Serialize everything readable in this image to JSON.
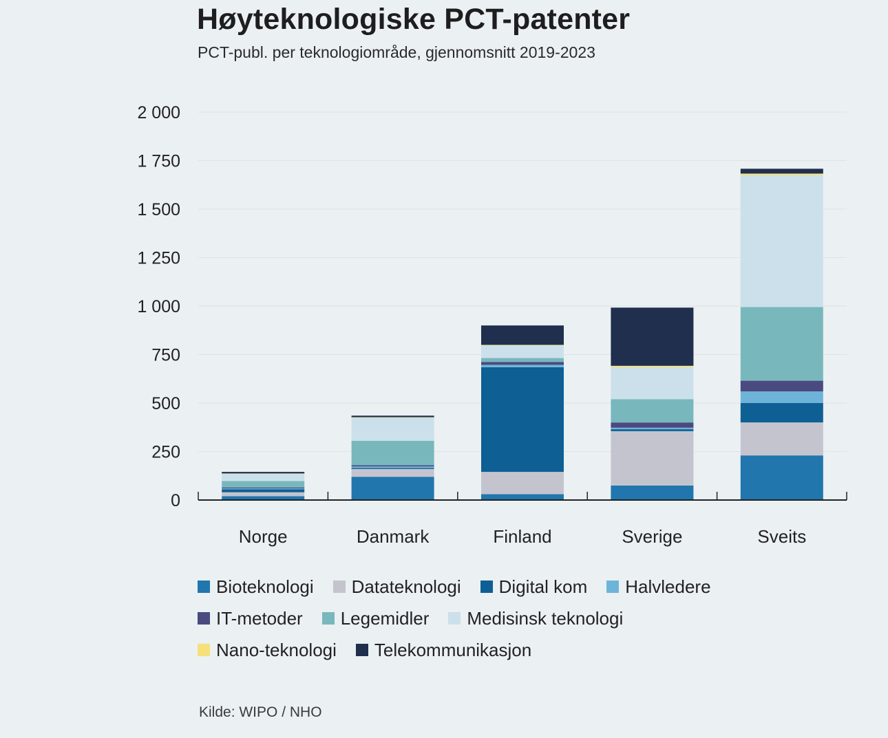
{
  "title": "Høyteknologiske PCT-patenter",
  "subtitle": "PCT-publ. per teknologiområde, gjennomsnitt 2019-2023",
  "source": "Kilde: WIPO / NHO",
  "chart_data": {
    "type": "bar",
    "stacked": true,
    "title": "Høyteknologiske PCT-patenter",
    "subtitle": "PCT-publ. per teknologiområde, gjennomsnitt 2019-2023",
    "xlabel": "",
    "ylabel": "",
    "ylim": [
      0,
      2000
    ],
    "yticks": [
      0,
      250,
      500,
      750,
      1000,
      1250,
      1500,
      1750,
      2000
    ],
    "ytick_labels": [
      "0",
      "250",
      "500",
      "750",
      "1 000",
      "1 250",
      "1 500",
      "1 750",
      "2 000"
    ],
    "grid": true,
    "legend_position": "bottom",
    "categories": [
      "Norge",
      "Danmark",
      "Finland",
      "Sverige",
      "Sveits"
    ],
    "series": [
      {
        "name": "Bioteknologi",
        "color": "#2176ae",
        "values": [
          20,
          120,
          30,
          75,
          230
        ]
      },
      {
        "name": "Datateknologi",
        "color": "#c4c4cf",
        "values": [
          20,
          40,
          115,
          280,
          170
        ]
      },
      {
        "name": "Digital kom",
        "color": "#0e5f94",
        "values": [
          15,
          5,
          540,
          10,
          100
        ]
      },
      {
        "name": "Halvledere",
        "color": "#6eb4d8",
        "values": [
          5,
          8,
          12,
          8,
          60
        ]
      },
      {
        "name": "IT-metoder",
        "color": "#4a4a80",
        "values": [
          5,
          7,
          15,
          27,
          55
        ]
      },
      {
        "name": "Legemidler",
        "color": "#78b8bd",
        "values": [
          33,
          125,
          20,
          120,
          380
        ]
      },
      {
        "name": "Medisinsk teknologi",
        "color": "#cbe0ea",
        "values": [
          37,
          120,
          65,
          165,
          680
        ]
      },
      {
        "name": "Nano-teknologi",
        "color": "#f5e07a",
        "values": [
          2,
          2,
          3,
          7,
          8
        ]
      },
      {
        "name": "Telekommunikasjon",
        "color": "#1f2f4d",
        "values": [
          8,
          8,
          100,
          300,
          25
        ]
      }
    ]
  }
}
